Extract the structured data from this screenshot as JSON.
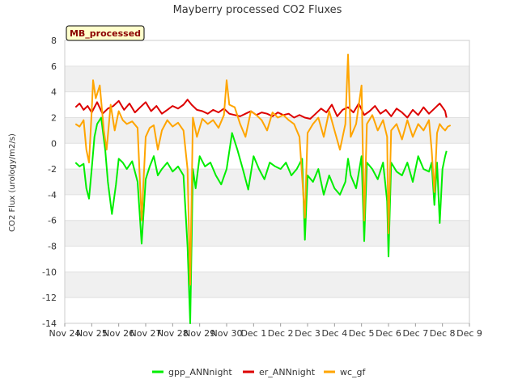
{
  "chart_data": {
    "type": "line",
    "title": "Mayberry processed CO2 Fluxes",
    "ylabel": "CO2 Flux (urology/m2/s)",
    "xlabel": "",
    "ylim": [
      -14,
      8
    ],
    "yticks": [
      -14,
      -12,
      -10,
      -8,
      -6,
      -4,
      -2,
      0,
      2,
      4,
      6,
      8
    ],
    "xlim": [
      0,
      15
    ],
    "xtick_labels": [
      "Nov 24",
      "Nov 25",
      "Nov 26",
      "Nov 27",
      "Nov 28",
      "Nov 29",
      "Nov 30",
      "Dec 1",
      "Dec 2",
      "Dec 3",
      "Dec 4",
      "Dec 5",
      "Dec 6",
      "Dec 7",
      "Dec 8",
      "Dec 9"
    ],
    "badge": "MB_processed",
    "grid": "horizontal alternating bands",
    "legend_position": "bottom-center",
    "series": [
      {
        "name": "gpp_ANNnight",
        "color": "#00ee00",
        "x": [
          0.4,
          0.55,
          0.7,
          0.8,
          0.9,
          1.0,
          1.1,
          1.2,
          1.35,
          1.5,
          1.6,
          1.75,
          1.9,
          2.0,
          2.15,
          2.3,
          2.5,
          2.7,
          2.85,
          3.0,
          3.15,
          3.3,
          3.45,
          3.6,
          3.8,
          4.0,
          4.2,
          4.4,
          4.55,
          4.65,
          4.75,
          4.85,
          5.0,
          5.2,
          5.4,
          5.6,
          5.8,
          6.0,
          6.2,
          6.4,
          6.6,
          6.8,
          7.0,
          7.2,
          7.4,
          7.6,
          7.8,
          8.0,
          8.2,
          8.4,
          8.6,
          8.8,
          8.9,
          9.0,
          9.2,
          9.4,
          9.6,
          9.8,
          10.0,
          10.2,
          10.4,
          10.5,
          10.6,
          10.8,
          11.0,
          11.1,
          11.2,
          11.4,
          11.6,
          11.8,
          11.95,
          12.0,
          12.1,
          12.3,
          12.5,
          12.7,
          12.9,
          13.1,
          13.3,
          13.5,
          13.6,
          13.7,
          13.8,
          13.9,
          14.0,
          14.1,
          14.15
        ],
        "values": [
          -1.5,
          -1.8,
          -1.6,
          -3.5,
          -4.3,
          -2.0,
          0.5,
          1.5,
          2.0,
          -0.5,
          -3.0,
          -5.5,
          -3.2,
          -1.2,
          -1.5,
          -2.0,
          -1.4,
          -3.0,
          -7.8,
          -2.8,
          -1.8,
          -1.0,
          -2.5,
          -2.0,
          -1.5,
          -2.2,
          -1.8,
          -2.5,
          -8.0,
          -14.0,
          -2.0,
          -3.5,
          -1.0,
          -1.8,
          -1.5,
          -2.5,
          -3.2,
          -2.0,
          0.8,
          -0.5,
          -2.0,
          -3.6,
          -1.0,
          -2.0,
          -2.8,
          -1.5,
          -1.8,
          -2.0,
          -1.5,
          -2.5,
          -2.0,
          -1.2,
          -7.5,
          -2.5,
          -3.0,
          -2.0,
          -4.0,
          -2.5,
          -3.5,
          -4.0,
          -3.0,
          -1.2,
          -2.5,
          -3.5,
          -1.0,
          -7.6,
          -1.5,
          -2.0,
          -2.8,
          -1.5,
          -4.5,
          -8.8,
          -1.5,
          -2.2,
          -2.5,
          -1.5,
          -3.0,
          -1.0,
          -2.0,
          -2.2,
          -1.5,
          -4.8,
          -1.5,
          -6.2,
          -2.0,
          -1.0,
          -0.6
        ]
      },
      {
        "name": "er_ANNnight",
        "color": "#dd0000",
        "x": [
          0.4,
          0.55,
          0.7,
          0.85,
          1.0,
          1.2,
          1.4,
          1.6,
          1.8,
          2.0,
          2.2,
          2.4,
          2.6,
          2.8,
          3.0,
          3.2,
          3.4,
          3.6,
          3.8,
          4.0,
          4.2,
          4.4,
          4.55,
          4.7,
          4.9,
          5.1,
          5.3,
          5.5,
          5.7,
          5.9,
          6.1,
          6.3,
          6.5,
          6.7,
          6.9,
          7.1,
          7.3,
          7.5,
          7.7,
          7.9,
          8.1,
          8.3,
          8.5,
          8.7,
          8.9,
          9.1,
          9.3,
          9.5,
          9.7,
          9.9,
          10.1,
          10.3,
          10.5,
          10.7,
          10.9,
          11.1,
          11.3,
          11.5,
          11.7,
          11.9,
          12.1,
          12.3,
          12.5,
          12.7,
          12.9,
          13.1,
          13.3,
          13.5,
          13.7,
          13.9,
          14.0,
          14.1,
          14.15
        ],
        "values": [
          2.8,
          3.1,
          2.6,
          2.9,
          2.4,
          3.2,
          2.3,
          2.7,
          2.9,
          3.3,
          2.6,
          3.1,
          2.4,
          2.8,
          3.2,
          2.5,
          2.9,
          2.3,
          2.6,
          2.9,
          2.7,
          3.0,
          3.4,
          3.0,
          2.6,
          2.5,
          2.3,
          2.6,
          2.4,
          2.7,
          2.3,
          2.2,
          2.1,
          2.3,
          2.5,
          2.2,
          2.4,
          2.3,
          2.1,
          2.4,
          2.2,
          2.3,
          2.0,
          2.2,
          2.0,
          1.9,
          2.3,
          2.7,
          2.4,
          3.0,
          2.1,
          2.6,
          2.8,
          2.4,
          3.1,
          2.2,
          2.5,
          2.9,
          2.3,
          2.6,
          2.1,
          2.7,
          2.4,
          2.0,
          2.6,
          2.2,
          2.8,
          2.3,
          2.7,
          3.1,
          2.8,
          2.5,
          2.0
        ]
      },
      {
        "name": "wc_gf",
        "color": "#ffa500",
        "x": [
          0.4,
          0.55,
          0.7,
          0.8,
          0.9,
          1.0,
          1.05,
          1.15,
          1.3,
          1.45,
          1.55,
          1.7,
          1.85,
          2.0,
          2.15,
          2.3,
          2.5,
          2.7,
          2.85,
          3.0,
          3.15,
          3.3,
          3.45,
          3.6,
          3.8,
          4.0,
          4.2,
          4.4,
          4.55,
          4.65,
          4.75,
          4.9,
          5.1,
          5.3,
          5.5,
          5.7,
          5.9,
          6.0,
          6.1,
          6.3,
          6.5,
          6.7,
          6.9,
          7.1,
          7.3,
          7.5,
          7.7,
          7.9,
          8.1,
          8.3,
          8.5,
          8.7,
          8.9,
          9.0,
          9.2,
          9.4,
          9.6,
          9.8,
          10.0,
          10.2,
          10.4,
          10.5,
          10.6,
          10.8,
          11.0,
          11.1,
          11.2,
          11.4,
          11.6,
          11.8,
          11.95,
          12.0,
          12.1,
          12.3,
          12.5,
          12.7,
          12.9,
          13.1,
          13.3,
          13.5,
          13.6,
          13.7,
          13.8,
          13.9,
          14.0,
          14.1,
          14.2,
          14.3
        ],
        "values": [
          1.5,
          1.3,
          1.8,
          -0.5,
          -1.5,
          2.5,
          4.9,
          3.5,
          4.5,
          1.0,
          -0.5,
          3.0,
          1.0,
          2.5,
          1.8,
          1.5,
          1.7,
          1.2,
          -6.0,
          0.5,
          1.2,
          1.4,
          -0.5,
          1.0,
          1.8,
          1.3,
          1.6,
          1.0,
          -2.0,
          -11.0,
          2.0,
          0.5,
          1.9,
          1.5,
          1.8,
          1.2,
          2.2,
          4.9,
          3.0,
          2.8,
          1.5,
          0.5,
          2.5,
          2.2,
          1.8,
          1.0,
          2.4,
          2.0,
          2.2,
          1.8,
          1.5,
          0.5,
          -5.8,
          0.8,
          1.5,
          2.0,
          0.5,
          2.5,
          1.0,
          -0.5,
          1.5,
          6.9,
          0.5,
          1.5,
          4.5,
          -6.0,
          1.5,
          2.2,
          1.0,
          1.8,
          0.5,
          -7.0,
          1.0,
          1.5,
          0.3,
          1.8,
          0.5,
          1.5,
          1.0,
          1.8,
          -0.5,
          -3.8,
          0.8,
          1.5,
          1.2,
          1.0,
          1.3,
          1.4
        ]
      }
    ]
  }
}
